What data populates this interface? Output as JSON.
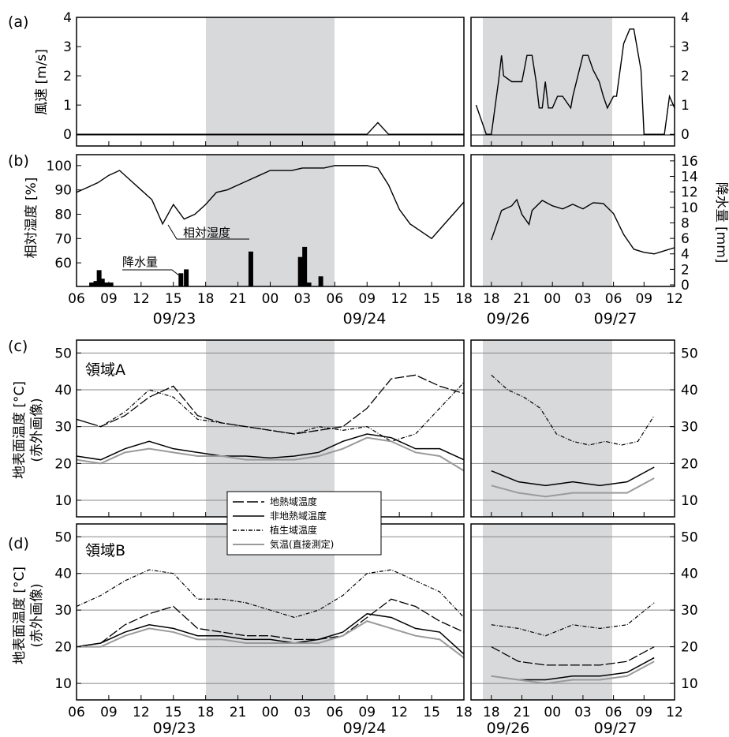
{
  "chart_data": [
    {
      "panel": "(a)",
      "type": "line",
      "ylabel": "風速 [m/s]",
      "ylim": [
        0,
        4
      ],
      "yticks": [
        "0",
        "1",
        "2",
        "3",
        "4"
      ],
      "xticks_left": [
        "06",
        "09",
        "12",
        "15",
        "18",
        "21",
        "00",
        "03",
        "06",
        "09",
        "12",
        "15",
        "18"
      ],
      "xticks_right": [
        "18",
        "21",
        "00",
        "03",
        "06",
        "09",
        "12"
      ],
      "shaded_hours": [
        "18",
        "06"
      ],
      "series": [
        {
          "segment": "09/23-09/24",
          "x": [
            0,
            1,
            2,
            3,
            4,
            5,
            6,
            7,
            8,
            9,
            10,
            11,
            12,
            13,
            14,
            15,
            16,
            17,
            18,
            19,
            20,
            21,
            22,
            23,
            24,
            25,
            26,
            27,
            28,
            29,
            30,
            31,
            32,
            33,
            34,
            35,
            36
          ],
          "values": [
            0,
            0,
            0,
            0,
            0,
            0,
            0,
            0,
            0,
            0,
            0,
            0,
            0,
            0,
            0,
            0,
            0,
            0,
            0,
            0,
            0,
            0,
            0,
            0,
            0,
            0,
            0,
            0,
            0.4,
            0,
            0,
            0,
            0,
            0,
            0,
            0,
            0
          ]
        },
        {
          "segment": "09/26-09/27",
          "x": [
            -1.5,
            -0.5,
            0,
            0.7,
            1,
            1.2,
            2,
            2.7,
            3,
            3.5,
            4,
            4.4,
            4.7,
            5,
            5.3,
            5.6,
            6,
            6.5,
            7,
            7.8,
            8,
            9,
            9.5,
            10,
            10.6,
            11,
            11.4,
            12,
            12.3,
            13,
            13.6,
            14,
            14.7,
            15,
            16,
            16.5,
            17,
            17.5,
            18
          ],
          "values": [
            1,
            0,
            0,
            1.8,
            2.7,
            2,
            1.8,
            1.8,
            1.8,
            2.7,
            2.7,
            1.8,
            0.9,
            0.9,
            1.8,
            0.9,
            0.9,
            1.3,
            1.3,
            0.9,
            1.3,
            2.7,
            2.7,
            2.2,
            1.8,
            1.3,
            0.9,
            1.3,
            1.3,
            3.1,
            3.6,
            3.6,
            2.2,
            0,
            0,
            0,
            0,
            1.3,
            0.9
          ]
        }
      ]
    },
    {
      "panel": "(b)",
      "type": "line+bar",
      "ylabel": "相対湿度 [%]",
      "ylabel_right": "降水量 [mm]",
      "ylim": [
        50,
        104
      ],
      "yticks": [
        "60",
        "70",
        "80",
        "90",
        "100"
      ],
      "yticks_right": [
        "0",
        "2",
        "4",
        "6",
        "8",
        "10",
        "12",
        "14",
        "16"
      ],
      "annotations": [
        "相対湿度",
        "降水量"
      ],
      "series": [
        {
          "name": "相対湿度",
          "segment": "09/23-09/24",
          "x": [
            0,
            1,
            2,
            3,
            4,
            5,
            6,
            7,
            8,
            9,
            10,
            11,
            12,
            13,
            14,
            15,
            16,
            17,
            18,
            19,
            20,
            21,
            22,
            23,
            24,
            25,
            26,
            27,
            28,
            29,
            30,
            31,
            32,
            33,
            34,
            35,
            36
          ],
          "values": [
            89,
            91,
            93,
            96,
            98,
            94,
            90,
            86,
            76,
            84,
            78,
            80,
            84,
            89,
            90,
            92,
            94,
            96,
            98,
            98,
            98,
            99,
            99,
            99,
            100,
            100,
            100,
            100,
            99,
            92,
            82,
            76,
            73,
            70,
            75,
            80,
            85
          ]
        },
        {
          "name": "相対湿度",
          "segment": "09/26-09/27",
          "x": [
            0,
            1,
            2,
            2.5,
            3,
            3.7,
            4,
            5,
            6,
            7,
            8,
            9,
            10,
            11,
            12,
            13,
            14,
            15,
            16,
            17,
            18
          ],
          "values": [
            5.8,
            9.6,
            10.2,
            11.0,
            9.1,
            7.8,
            9.6,
            10.9,
            10.2,
            9.8,
            10.4,
            9.8,
            10.6,
            10.5,
            9.2,
            6.5,
            4.6,
            4.2,
            4.0,
            4.4,
            4.8
          ]
        },
        {
          "name": "降水量",
          "segment": "09/23",
          "x": [
            1.4,
            1.8,
            2.1,
            2.4,
            2.8,
            3.2,
            9.7,
            10.2,
            16.2,
            20.8,
            21.2,
            21.6,
            22.7
          ],
          "values": [
            0.3,
            0.5,
            1.9,
            0.8,
            0.3,
            0.3,
            1.5,
            2.0,
            4.3,
            3.6,
            4.9,
            0.3,
            1.1
          ]
        }
      ]
    },
    {
      "panel": "(c)",
      "region": "領域A",
      "type": "line",
      "ylabel": "地表面温度 [°C]",
      "ylabel2": "(赤外画像)",
      "ylim": [
        5,
        53
      ],
      "yticks": [
        "10",
        "20",
        "30",
        "40",
        "50"
      ],
      "series": [
        {
          "name": "地熱域温度",
          "values": [
            32,
            30,
            33,
            38,
            41,
            33,
            31,
            30,
            29,
            28,
            29,
            30,
            35,
            43,
            44,
            41,
            39
          ]
        },
        {
          "name": "非地熱域温度",
          "values": [
            22,
            21,
            24,
            26,
            24,
            23,
            22,
            22,
            21.5,
            22,
            23,
            26,
            28,
            27,
            24,
            24,
            21,
            18,
            15,
            14,
            15,
            14,
            15,
            19
          ]
        },
        {
          "name": "植生域温度",
          "values": [
            32,
            30,
            34,
            40,
            38,
            32,
            31,
            30,
            29,
            28,
            30,
            29,
            30,
            26,
            28,
            35,
            42,
            44,
            40,
            38,
            35,
            28,
            26,
            25,
            26,
            25,
            26,
            33
          ]
        },
        {
          "name": "気温(直接測定)",
          "values": [
            21,
            20,
            23,
            24,
            23,
            22,
            22,
            21,
            21,
            21,
            22,
            24,
            27,
            26,
            23,
            22,
            18,
            14,
            12,
            11,
            12,
            12,
            12,
            16
          ]
        }
      ]
    },
    {
      "panel": "(d)",
      "region": "領域B",
      "type": "line",
      "ylabel": "地表面温度 [°C]",
      "ylabel2": "(赤外画像)",
      "ylim": [
        5,
        53
      ],
      "yticks": [
        "10",
        "20",
        "30",
        "40",
        "50"
      ],
      "series": [
        {
          "name": "地熱域温度",
          "values": [
            20,
            21,
            26,
            29,
            31,
            25,
            24,
            23,
            23,
            22,
            22,
            23,
            28,
            33,
            31,
            27,
            24,
            20,
            16,
            15,
            15,
            15,
            16,
            20
          ]
        },
        {
          "name": "非地熱域温度",
          "values": [
            20,
            21,
            24,
            26,
            25,
            23,
            23,
            22,
            22,
            21,
            22,
            24,
            29,
            28,
            25,
            24,
            18,
            12,
            11,
            11,
            12,
            12,
            13,
            17
          ]
        },
        {
          "name": "植生域温度",
          "values": [
            31,
            34,
            38,
            41,
            40,
            33,
            33,
            32,
            30,
            28,
            30,
            34,
            40,
            41,
            38,
            35,
            28,
            26,
            25,
            23,
            26,
            25,
            26,
            32
          ]
        },
        {
          "name": "気温(直接測定)",
          "values": [
            20,
            20,
            23,
            25,
            24,
            22,
            22,
            21,
            21,
            21,
            21,
            23,
            27,
            25,
            23,
            22,
            17,
            12,
            11,
            10,
            11,
            11,
            12,
            16
          ]
        }
      ]
    }
  ],
  "legend": {
    "items": [
      "地熱域温度",
      "非地熱域温度",
      "植生域温度",
      "気温(直接測定)"
    ]
  },
  "axes_text": {
    "x_dates_left": [
      "09/23",
      "09/24"
    ],
    "x_dates_right": [
      "09/26",
      "09/27"
    ],
    "panel_labels": [
      "(a)",
      "(b)",
      "(c)",
      "(d)"
    ],
    "regions": [
      "領域A",
      "領域B"
    ]
  }
}
